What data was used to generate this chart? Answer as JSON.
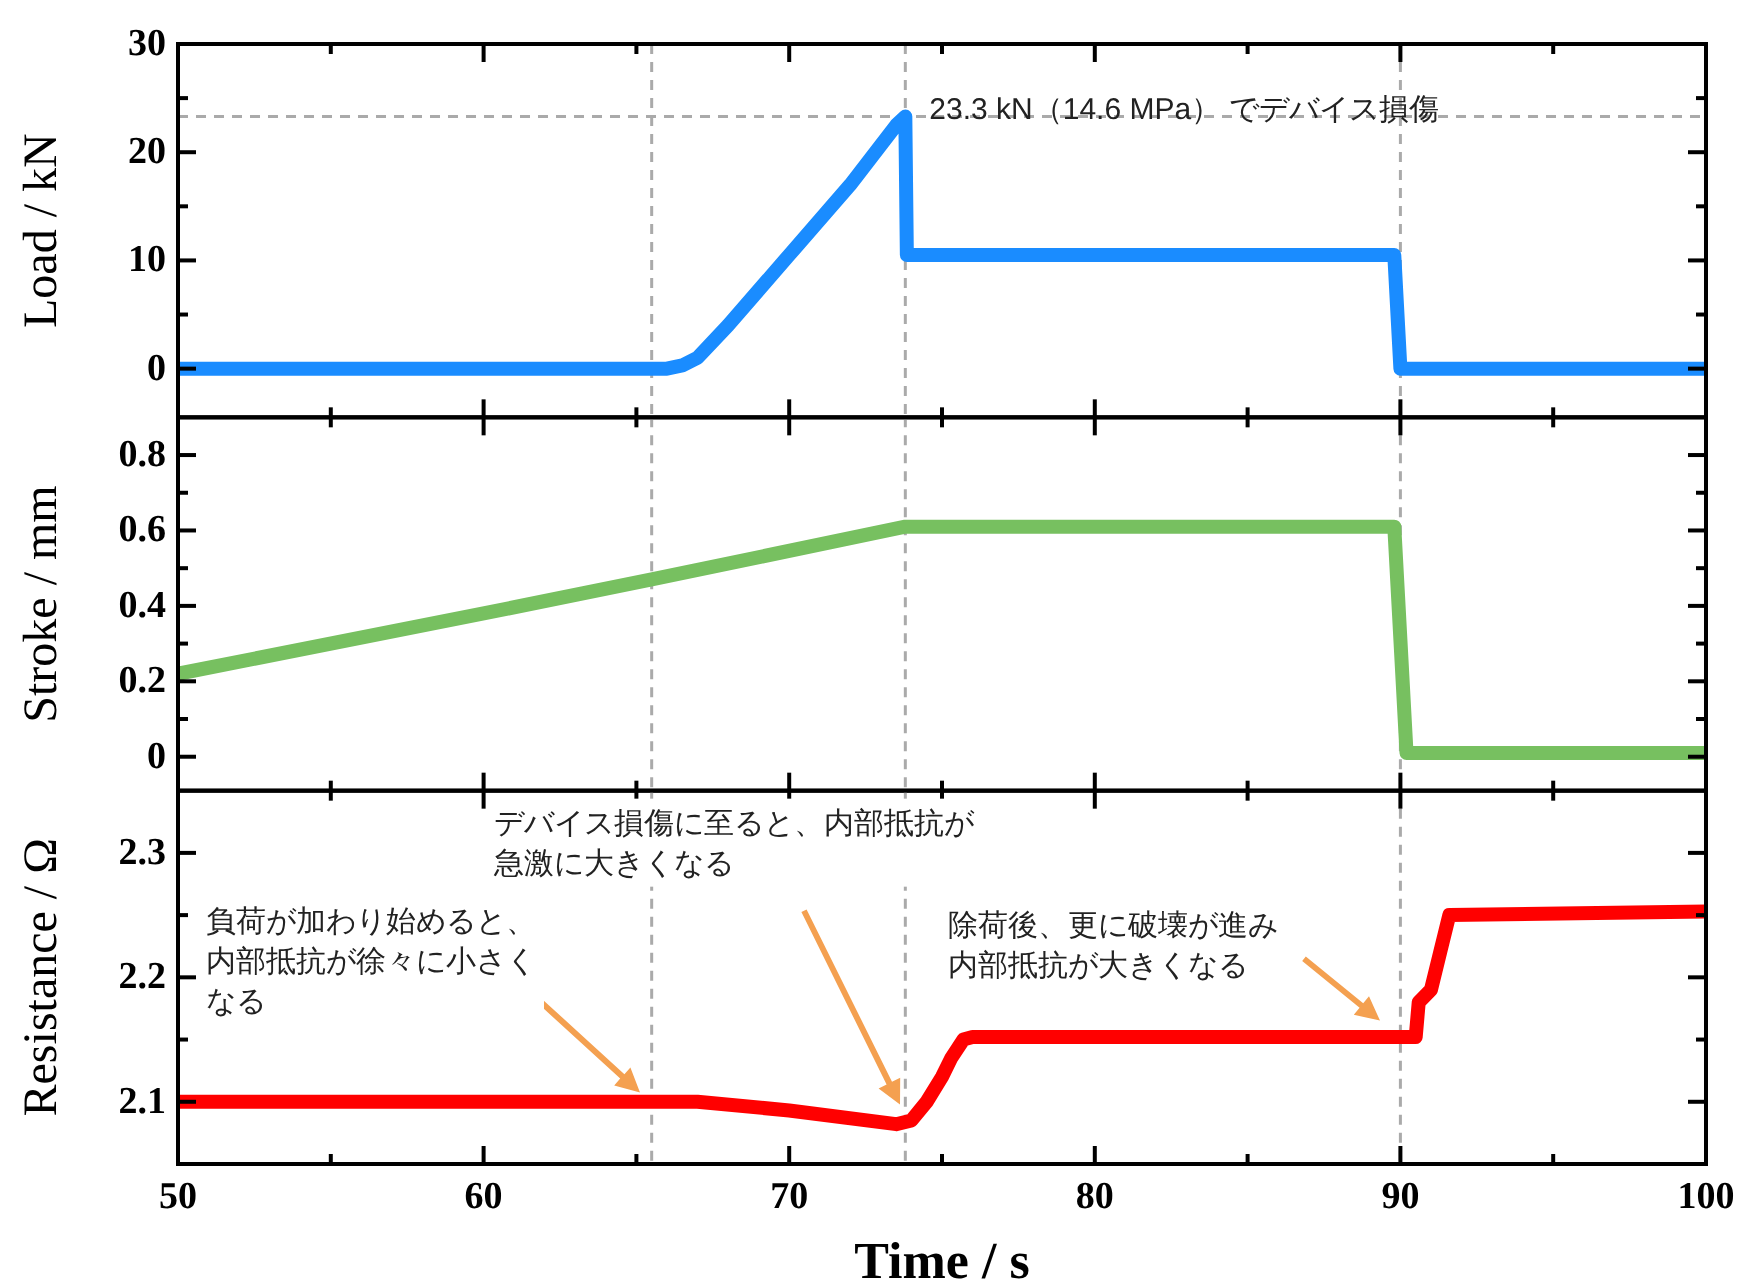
{
  "chart_data": [
    {
      "type": "line",
      "ylabel": "Load / kN",
      "tick_labels": "y",
      "grid": false,
      "x": [
        50,
        66,
        66.5,
        67,
        68,
        70,
        72,
        73.5,
        73.8,
        73.85,
        89.8,
        90,
        100
      ],
      "series": [
        {
          "color": "#1a8cff",
          "values": [
            0,
            0,
            0.3,
            1,
            4,
            10.5,
            17,
            22.5,
            23.3,
            10.5,
            10.5,
            0,
            0
          ]
        }
      ],
      "xlim": [
        50,
        100
      ],
      "xticks": [
        50,
        {
          "value": 55,
          "label": null
        },
        60,
        {
          "value": 65,
          "label": null
        },
        70,
        {
          "value": 75,
          "label": null
        },
        80,
        {
          "value": 85,
          "label": null
        },
        90,
        {
          "value": 95,
          "label": null
        },
        100
      ],
      "ylim": [
        -4.5,
        30
      ],
      "yticks": [
        0,
        {
          "value": 5,
          "label": null
        },
        10,
        {
          "value": 15,
          "label": null
        },
        20,
        {
          "value": 25,
          "label": null
        },
        30
      ],
      "ref_lines": [
        {
          "axis": "y",
          "value": 23.3,
          "color": "#aaaaaa",
          "line_style": "dashed"
        },
        {
          "axis": "x",
          "value": 65.5,
          "color": "#aaaaaa",
          "line_style": "dashed"
        },
        {
          "axis": "x",
          "value": 73.8,
          "color": "#aaaaaa",
          "line_style": "dashed"
        },
        {
          "axis": "x",
          "value": 90,
          "color": "#aaaaaa",
          "line_style": "dashed"
        }
      ],
      "annotations": [
        {
          "text": "23.3 kN（14.6 MPa） でデバイス損傷",
          "x": 73.8,
          "y": 23.3
        }
      ]
    },
    {
      "type": "line",
      "ylabel": "Stroke / mm",
      "tick_labels": "y",
      "grid": false,
      "x": [
        50,
        60,
        65.5,
        73.8,
        89.8,
        90.2,
        100
      ],
      "series": [
        {
          "color": "#77c060",
          "values": [
            0.22,
            0.38,
            0.47,
            0.61,
            0.61,
            0.01,
            0.01
          ]
        }
      ],
      "xlim": [
        50,
        100
      ],
      "xticks": [
        50,
        {
          "value": 55,
          "label": null
        },
        60,
        {
          "value": 65,
          "label": null
        },
        70,
        {
          "value": 75,
          "label": null
        },
        80,
        {
          "value": 85,
          "label": null
        },
        90,
        {
          "value": 95,
          "label": null
        },
        100
      ],
      "ylim": [
        -0.09,
        0.9
      ],
      "yticks": [
        0,
        {
          "value": 0.1,
          "label": null
        },
        0.2,
        {
          "value": 0.3,
          "label": null
        },
        0.4,
        {
          "value": 0.5,
          "label": null
        },
        0.6,
        {
          "value": 0.7,
          "label": null
        },
        0.8
      ],
      "ref_lines": [
        {
          "axis": "x",
          "value": 65.5,
          "color": "#aaaaaa",
          "line_style": "dashed"
        },
        {
          "axis": "x",
          "value": 73.8,
          "color": "#aaaaaa",
          "line_style": "dashed"
        },
        {
          "axis": "x",
          "value": 90,
          "color": "#aaaaaa",
          "line_style": "dashed"
        }
      ]
    },
    {
      "type": "line",
      "ylabel": "Resistance / Ω",
      "xlabel": "Time / s",
      "grid": false,
      "x": [
        50,
        67,
        70,
        73.5,
        74,
        74.5,
        75,
        75.3,
        75.7,
        76,
        90.5,
        90.6,
        91,
        91.3,
        91.6,
        100
      ],
      "series": [
        {
          "color": "#ff0000",
          "values": [
            2.1,
            2.1,
            2.093,
            2.082,
            2.085,
            2.1,
            2.12,
            2.135,
            2.15,
            2.152,
            2.152,
            2.18,
            2.19,
            2.22,
            2.25,
            2.253
          ]
        }
      ],
      "xlim": [
        50,
        100
      ],
      "xticks": [
        50,
        {
          "value": 55,
          "label": null
        },
        60,
        {
          "value": 65,
          "label": null
        },
        70,
        {
          "value": 75,
          "label": null
        },
        80,
        {
          "value": 85,
          "label": null
        },
        90,
        {
          "value": 95,
          "label": null
        },
        100
      ],
      "ylim": [
        2.05,
        2.35
      ],
      "yticks": [
        2.1,
        {
          "value": 2.15,
          "label": null
        },
        2.2,
        {
          "value": 2.25,
          "label": null
        },
        2.3
      ],
      "ref_lines": [
        {
          "axis": "x",
          "value": 65.5,
          "color": "#aaaaaa",
          "line_style": "dashed"
        },
        {
          "axis": "x",
          "value": 73.8,
          "color": "#aaaaaa",
          "line_style": "dashed"
        },
        {
          "axis": "x",
          "value": 90,
          "color": "#aaaaaa",
          "line_style": "dashed"
        }
      ],
      "annotations": [
        "負荷が加わり始めると、内部抵抗が徐々に小さくなる",
        "デバイス損傷に至ると、内部抵抗が急激に大きくなる",
        "除荷後、更に破壊が進み内部抵抗が大きくなる"
      ]
    }
  ]
}
